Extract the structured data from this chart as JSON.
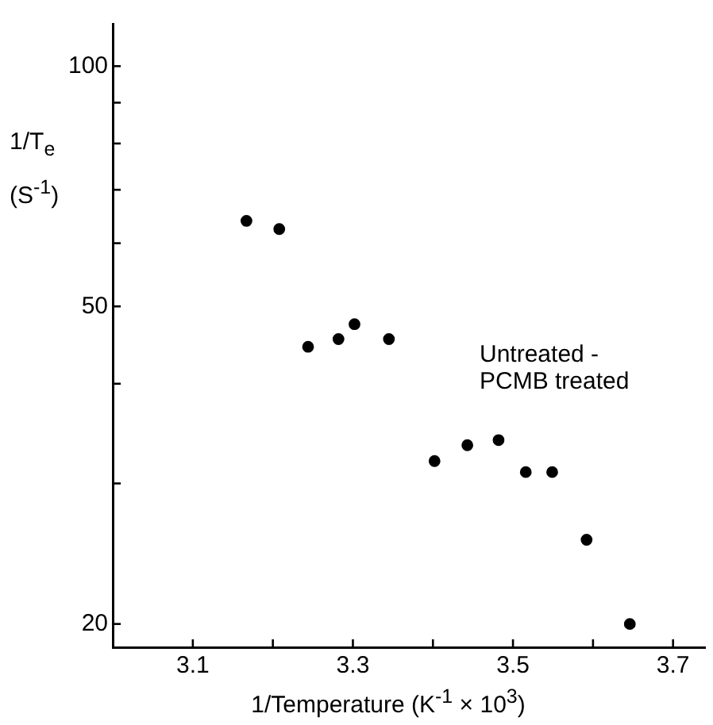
{
  "chart_data": {
    "type": "scatter",
    "xlabel": "1/Temperature (K$^{-1}$ × 10$^{3}$)",
    "ylabel": "1/T$_{e}$ (S$^{-1}$)",
    "annotations": [
      "Untreated -\nPCMB treated"
    ],
    "series": [
      {
        "color": "#000000",
        "x": [
          3.167,
          3.208,
          3.244,
          3.282,
          3.302,
          3.345,
          3.402,
          3.443,
          3.482,
          3.516,
          3.549,
          3.592,
          3.646
        ],
        "values": [
          64,
          62.5,
          44.5,
          45.5,
          47.5,
          45.5,
          32,
          33.5,
          34,
          31,
          31,
          25.5,
          20
        ]
      }
    ],
    "log": "y",
    "xlim": [
      3.0,
      3.74
    ],
    "ylim": [
      18.7,
      113
    ],
    "xticks": [
      3.1,
      {
        "value": 3.2,
        "label": null
      },
      3.3,
      {
        "value": 3.4,
        "label": null
      },
      3.5,
      {
        "value": 3.6,
        "label": null
      },
      3.7
    ],
    "yticks": [
      20,
      {
        "value": 30,
        "label": null
      },
      {
        "value": 40,
        "label": null
      },
      50,
      {
        "value": 60,
        "label": null
      },
      {
        "value": 70,
        "label": null
      },
      {
        "value": 80,
        "label": null
      },
      {
        "value": 90,
        "label": null
      },
      100
    ],
    "grid": false,
    "legend": false,
    "marker": "circle"
  }
}
